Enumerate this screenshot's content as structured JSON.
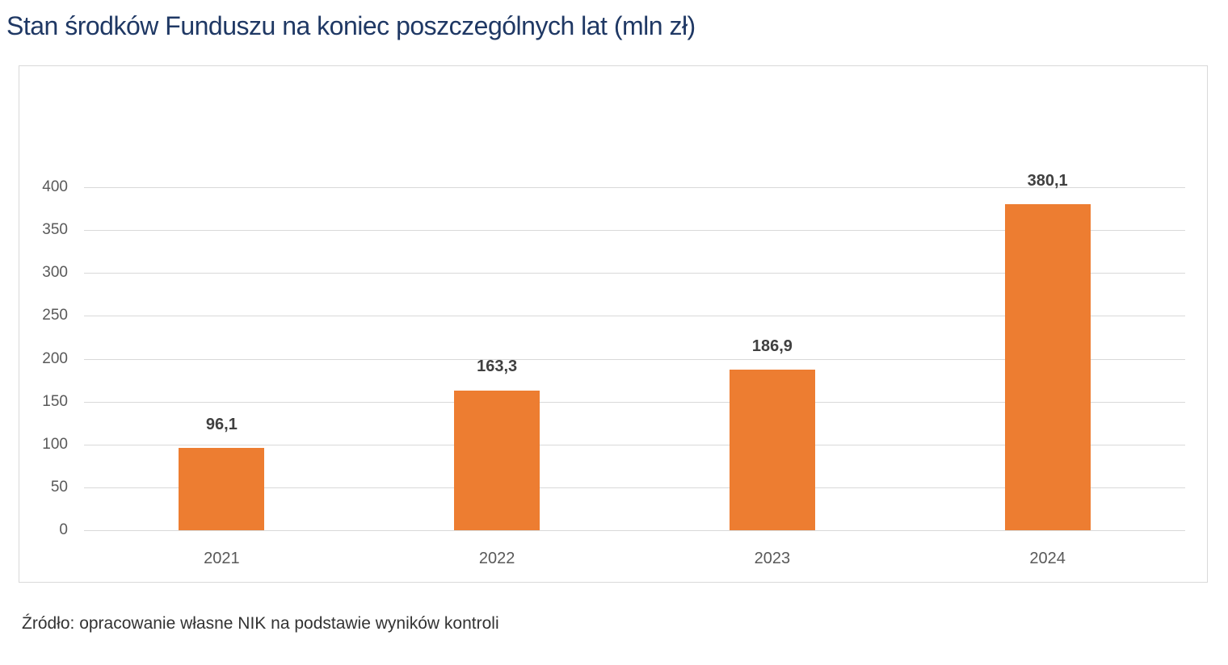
{
  "title": "Stan środków Funduszu na koniec poszczególnych lat (mln zł)",
  "source": "Źródło: opracowanie własne NIK na podstawie wyników kontroli",
  "colors": {
    "bar": "#ed7d31",
    "title": "#1f3864",
    "grid": "#d9d9d9",
    "axis_text": "#595959",
    "label_text": "#404040"
  },
  "chart_data": {
    "type": "bar",
    "title": "Stan środków Funduszu na koniec poszczególnych lat (mln zł)",
    "xlabel": "",
    "ylabel": "",
    "categories": [
      "2021",
      "2022",
      "2023",
      "2024"
    ],
    "values": [
      96.1,
      163.3,
      186.9,
      380.1
    ],
    "value_labels": [
      "96,1",
      "163,3",
      "186,9",
      "380,1"
    ],
    "ylim": [
      0,
      400
    ],
    "yticks": [
      "0",
      "50",
      "100",
      "150",
      "200",
      "250",
      "300",
      "350",
      "400"
    ],
    "grid": true,
    "legend": "none"
  }
}
